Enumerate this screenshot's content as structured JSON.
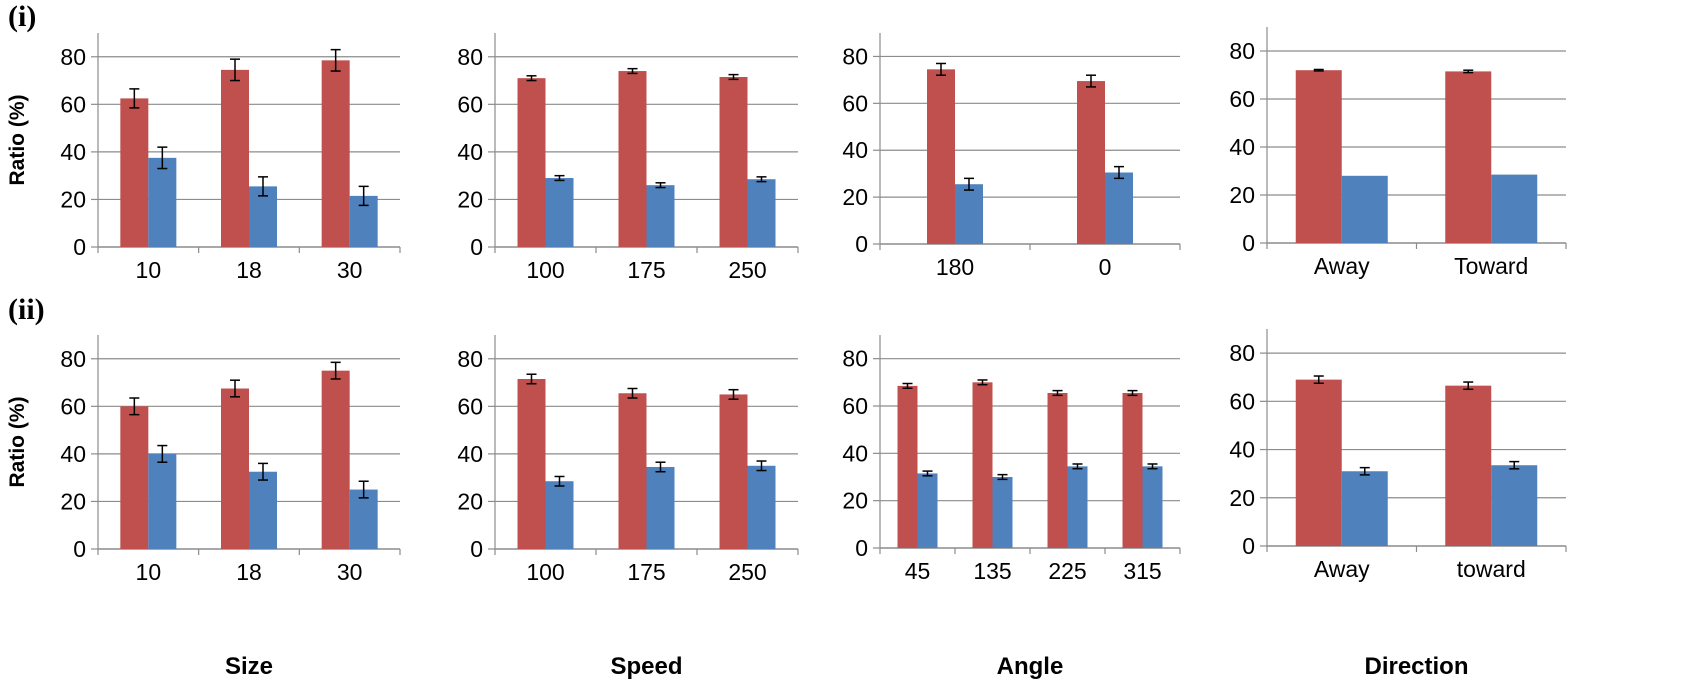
{
  "figure": {
    "row_labels": [
      "(i)",
      "(ii)"
    ],
    "ylabel": "Ratio (%)",
    "xlabels": [
      "Size",
      "Speed",
      "Angle",
      "Direction"
    ],
    "colors": {
      "series1": "#C0504D",
      "series2": "#4F81BD",
      "grid": "#8c8c8c",
      "axis": "#8c8c8c"
    }
  },
  "chart_data": [
    {
      "type": "bar",
      "row": "(i)",
      "categories": [
        "10",
        "18",
        "30"
      ],
      "ylim": [
        0,
        90
      ],
      "yticks": [
        0,
        20,
        40,
        60,
        80
      ],
      "grid": true,
      "series": [
        {
          "values": [
            62.5,
            74.5,
            78.5
          ],
          "errors": [
            4,
            4.5,
            4.5
          ]
        },
        {
          "values": [
            37.5,
            25.5,
            21.5
          ],
          "errors": [
            4.5,
            4,
            4
          ]
        }
      ]
    },
    {
      "type": "bar",
      "row": "(i)",
      "categories": [
        "100",
        "175",
        "250"
      ],
      "ylim": [
        0,
        90
      ],
      "yticks": [
        0,
        20,
        40,
        60,
        80
      ],
      "grid": true,
      "series": [
        {
          "values": [
            71,
            74,
            71.5
          ],
          "errors": [
            1,
            1,
            1
          ]
        },
        {
          "values": [
            29,
            26,
            28.5
          ],
          "errors": [
            1,
            1,
            1
          ]
        }
      ]
    },
    {
      "type": "bar",
      "row": "(i)",
      "categories": [
        "180",
        "0"
      ],
      "ylim": [
        0,
        90
      ],
      "yticks": [
        0,
        20,
        40,
        60,
        80
      ],
      "grid": true,
      "series": [
        {
          "values": [
            74.5,
            69.5
          ],
          "errors": [
            2.5,
            2.5
          ]
        },
        {
          "values": [
            25.5,
            30.5
          ],
          "errors": [
            2.5,
            2.5
          ]
        }
      ]
    },
    {
      "type": "bar",
      "row": "(i)",
      "categories": [
        "Away",
        "Toward"
      ],
      "ylim": [
        0,
        90
      ],
      "yticks": [
        0,
        20,
        40,
        60,
        80
      ],
      "grid": true,
      "series": [
        {
          "values": [
            72,
            71.5
          ],
          "errors": [
            0.3,
            0.5
          ]
        },
        {
          "values": [
            28,
            28.5
          ],
          "errors": [
            0,
            0
          ]
        }
      ]
    },
    {
      "type": "bar",
      "row": "(ii)",
      "categories": [
        "10",
        "18",
        "30"
      ],
      "ylim": [
        0,
        90
      ],
      "yticks": [
        0,
        20,
        40,
        60,
        80
      ],
      "grid": true,
      "series": [
        {
          "values": [
            60,
            67.5,
            75
          ],
          "errors": [
            3.5,
            3.5,
            3.5
          ]
        },
        {
          "values": [
            40,
            32.5,
            25
          ],
          "errors": [
            3.5,
            3.5,
            3.5
          ]
        }
      ]
    },
    {
      "type": "bar",
      "row": "(ii)",
      "categories": [
        "100",
        "175",
        "250"
      ],
      "ylim": [
        0,
        90
      ],
      "yticks": [
        0,
        20,
        40,
        60,
        80
      ],
      "grid": true,
      "series": [
        {
          "values": [
            71.5,
            65.5,
            65
          ],
          "errors": [
            2,
            2,
            2
          ]
        },
        {
          "values": [
            28.5,
            34.5,
            35
          ],
          "errors": [
            2,
            2,
            2
          ]
        }
      ]
    },
    {
      "type": "bar",
      "row": "(ii)",
      "categories": [
        "45",
        "135",
        "225",
        "315"
      ],
      "ylim": [
        0,
        90
      ],
      "yticks": [
        0,
        20,
        40,
        60,
        80
      ],
      "grid": true,
      "series": [
        {
          "values": [
            68.5,
            70,
            65.5,
            65.5
          ],
          "errors": [
            1,
            1,
            1,
            1
          ]
        },
        {
          "values": [
            31.5,
            30,
            34.5,
            34.5
          ],
          "errors": [
            1,
            1,
            1,
            1
          ]
        }
      ]
    },
    {
      "type": "bar",
      "row": "(ii)",
      "categories": [
        "Away",
        "toward"
      ],
      "ylim": [
        0,
        90
      ],
      "yticks": [
        0,
        20,
        40,
        60,
        80
      ],
      "grid": true,
      "series": [
        {
          "values": [
            69,
            66.5
          ],
          "errors": [
            1.5,
            1.5
          ]
        },
        {
          "values": [
            31,
            33.5
          ],
          "errors": [
            1.5,
            1.5
          ]
        }
      ]
    }
  ]
}
